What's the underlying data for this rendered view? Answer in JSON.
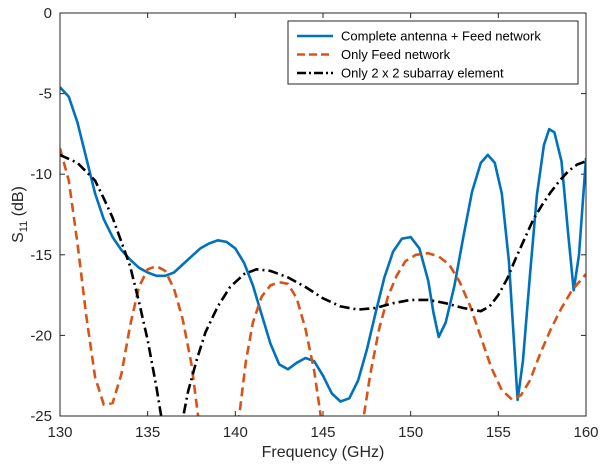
{
  "chart_data": {
    "type": "line",
    "title": "",
    "xlabel": "Frequency (GHz)",
    "ylabel": "S",
    "ylabel_subscript": "11",
    "ylabel_unit": " (dB)",
    "xlim": [
      130,
      160
    ],
    "ylim": [
      -25,
      0
    ],
    "xticks": [
      130,
      135,
      140,
      145,
      150,
      155,
      160
    ],
    "yticks": [
      0,
      -5,
      -10,
      -15,
      -20,
      -25
    ],
    "grid": false,
    "legend_position": "top-right",
    "series": [
      {
        "name": "Complete antenna + Feed network",
        "color": "#0072BD",
        "style": "solid",
        "points": [
          [
            130,
            -4.6
          ],
          [
            130.5,
            -5.2
          ],
          [
            131,
            -6.8
          ],
          [
            131.5,
            -9
          ],
          [
            132,
            -11.2
          ],
          [
            132.5,
            -12.8
          ],
          [
            133,
            -13.9
          ],
          [
            133.5,
            -14.7
          ],
          [
            134,
            -15.3
          ],
          [
            134.5,
            -15.8
          ],
          [
            135,
            -16.1
          ],
          [
            135.5,
            -16.3
          ],
          [
            136,
            -16.3
          ],
          [
            136.5,
            -16.1
          ],
          [
            137,
            -15.6
          ],
          [
            137.5,
            -15.1
          ],
          [
            138,
            -14.6
          ],
          [
            138.5,
            -14.3
          ],
          [
            139,
            -14.1
          ],
          [
            139.5,
            -14.2
          ],
          [
            140,
            -14.6
          ],
          [
            140.5,
            -15.5
          ],
          [
            141,
            -16.9
          ],
          [
            141.5,
            -18.7
          ],
          [
            142,
            -20.5
          ],
          [
            142.5,
            -21.8
          ],
          [
            143,
            -22.1
          ],
          [
            143.5,
            -21.7
          ],
          [
            144,
            -21.4
          ],
          [
            144.5,
            -21.6
          ],
          [
            145,
            -22.5
          ],
          [
            145.5,
            -23.6
          ],
          [
            146,
            -24.1
          ],
          [
            146.5,
            -23.9
          ],
          [
            147,
            -22.8
          ],
          [
            147.5,
            -20.9
          ],
          [
            148,
            -18.6
          ],
          [
            148.5,
            -16.4
          ],
          [
            149,
            -14.8
          ],
          [
            149.5,
            -14
          ],
          [
            150,
            -13.9
          ],
          [
            150.5,
            -14.6
          ],
          [
            151,
            -16.6
          ],
          [
            151.3,
            -18.6
          ],
          [
            151.6,
            -20.1
          ],
          [
            152,
            -19.2
          ],
          [
            152.5,
            -16.9
          ],
          [
            153,
            -13.9
          ],
          [
            153.5,
            -11.1
          ],
          [
            154,
            -9.3
          ],
          [
            154.4,
            -8.8
          ],
          [
            154.8,
            -9.3
          ],
          [
            155.2,
            -11.2
          ],
          [
            155.6,
            -15.4
          ],
          [
            155.9,
            -20.5
          ],
          [
            156.1,
            -24
          ],
          [
            156.4,
            -21.6
          ],
          [
            156.8,
            -16.3
          ],
          [
            157.2,
            -11.3
          ],
          [
            157.6,
            -8.2
          ],
          [
            157.9,
            -7.2
          ],
          [
            158.2,
            -7.4
          ],
          [
            158.6,
            -9.2
          ],
          [
            159,
            -13.9
          ],
          [
            159.3,
            -17.2
          ],
          [
            159.6,
            -15
          ],
          [
            160,
            -9
          ]
        ]
      },
      {
        "name": "Only Feed network",
        "color": "#D95319",
        "style": "dashed",
        "points": [
          [
            130,
            -8.4
          ],
          [
            130.5,
            -10.4
          ],
          [
            131,
            -14.3
          ],
          [
            131.5,
            -18.8
          ],
          [
            132,
            -22.6
          ],
          [
            132.5,
            -24.3
          ],
          [
            133,
            -24.2
          ],
          [
            133.5,
            -22.4
          ],
          [
            134,
            -19.4
          ],
          [
            134.5,
            -17
          ],
          [
            135,
            -15.9
          ],
          [
            135.5,
            -15.7
          ],
          [
            136,
            -16
          ],
          [
            136.5,
            -17.1
          ],
          [
            137,
            -19
          ],
          [
            137.5,
            -21.8
          ],
          [
            137.9,
            -25.2
          ],
          [
            140.2,
            -25.2
          ],
          [
            140.6,
            -21.6
          ],
          [
            141,
            -19.2
          ],
          [
            141.5,
            -17.6
          ],
          [
            142,
            -16.9
          ],
          [
            142.5,
            -16.7
          ],
          [
            143,
            -16.8
          ],
          [
            143.5,
            -17.7
          ],
          [
            144,
            -19.6
          ],
          [
            144.5,
            -22.2
          ],
          [
            144.9,
            -25.2
          ],
          [
            147.3,
            -25.2
          ],
          [
            147.7,
            -22.4
          ],
          [
            148.2,
            -19.6
          ],
          [
            148.7,
            -17.6
          ],
          [
            149.2,
            -16.3
          ],
          [
            149.7,
            -15.4
          ],
          [
            150.3,
            -15
          ],
          [
            151,
            -14.9
          ],
          [
            151.6,
            -15.1
          ],
          [
            152.2,
            -15.6
          ],
          [
            152.8,
            -16.7
          ],
          [
            153.4,
            -18.2
          ],
          [
            154,
            -20.1
          ],
          [
            154.6,
            -22
          ],
          [
            155.2,
            -23.4
          ],
          [
            155.8,
            -24
          ],
          [
            156.3,
            -23.7
          ],
          [
            156.8,
            -22.8
          ],
          [
            157.4,
            -21.1
          ],
          [
            158,
            -19.6
          ],
          [
            158.6,
            -18.3
          ],
          [
            159.2,
            -17.2
          ],
          [
            160,
            -16.2
          ]
        ]
      },
      {
        "name": "Only 2 x 2 subarray element",
        "color": "#000000",
        "style": "dashdot",
        "points": [
          [
            130,
            -8.8
          ],
          [
            131,
            -9.3
          ],
          [
            132,
            -10.4
          ],
          [
            132.5,
            -11.5
          ],
          [
            133,
            -12.7
          ],
          [
            133.5,
            -14.2
          ],
          [
            134,
            -15.7
          ],
          [
            134.5,
            -17.9
          ],
          [
            135,
            -20.3
          ],
          [
            135.5,
            -23.2
          ],
          [
            135.8,
            -25.2
          ],
          [
            137,
            -25.2
          ],
          [
            137.3,
            -23.5
          ],
          [
            137.8,
            -21.5
          ],
          [
            138.3,
            -19.8
          ],
          [
            139,
            -18.2
          ],
          [
            139.7,
            -17
          ],
          [
            140.5,
            -16.2
          ],
          [
            141.2,
            -15.9
          ],
          [
            142,
            -16
          ],
          [
            143,
            -16.4
          ],
          [
            144,
            -17
          ],
          [
            145,
            -17.7
          ],
          [
            146,
            -18.2
          ],
          [
            147,
            -18.4
          ],
          [
            148,
            -18.3
          ],
          [
            149,
            -18
          ],
          [
            150,
            -17.8
          ],
          [
            151,
            -17.8
          ],
          [
            152,
            -18
          ],
          [
            153,
            -18.3
          ],
          [
            154,
            -18.5
          ],
          [
            154.5,
            -18.2
          ],
          [
            155,
            -17.5
          ],
          [
            155.5,
            -16.5
          ],
          [
            156,
            -15.2
          ],
          [
            156.5,
            -14
          ],
          [
            157,
            -12.8
          ],
          [
            157.5,
            -11.9
          ],
          [
            158,
            -11.1
          ],
          [
            158.5,
            -10.4
          ],
          [
            159,
            -9.8
          ],
          [
            159.5,
            -9.4
          ],
          [
            160,
            -9.2
          ]
        ]
      }
    ]
  }
}
